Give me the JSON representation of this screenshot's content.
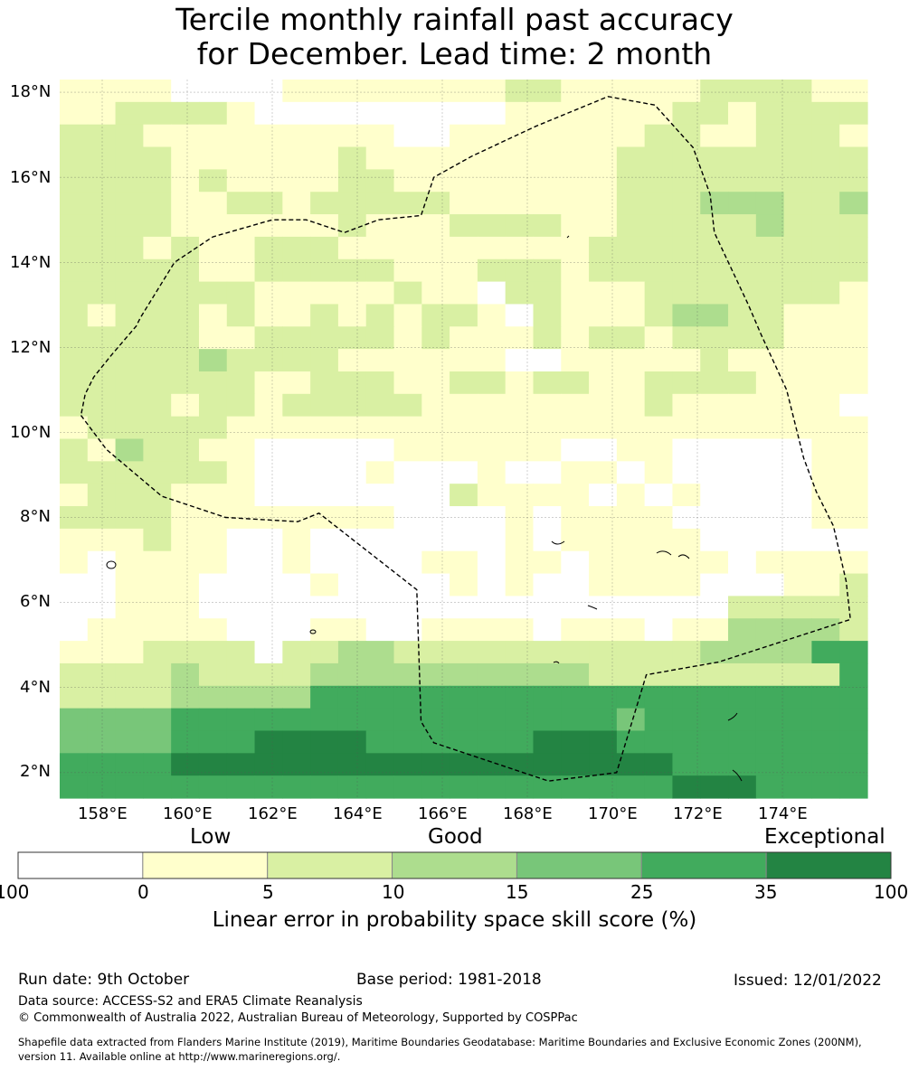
{
  "title_line1": "Tercile monthly rainfall past accuracy",
  "title_line2": "for December. Lead time: 2 month",
  "map": {
    "lon_range": [
      157,
      176
    ],
    "lat_range": [
      1.4,
      18.3
    ],
    "lon_ticks": [
      "158°E",
      "160°E",
      "162°E",
      "164°E",
      "166°E",
      "168°E",
      "170°E",
      "172°E",
      "174°E"
    ],
    "lat_ticks": [
      "18°N",
      "16°N",
      "14°N",
      "12°N",
      "10°N",
      "8°N",
      "6°N",
      "4°N",
      "2°N"
    ],
    "grid_note": "skill class index per 0.55° cell, rows north to south: 0=<0, 1=0-5, 2=5-10, 3=10-15, 4=15-25, 5=25-35, 6=35-100",
    "skill_grid": [
      "11110000111111112211111222211",
      "11222210000000001111112212222",
      "22211111111100111111122112221",
      "22221111112111111111222222222",
      "22221211112211111111222222222",
      "22221122122222111111222333223",
      "22221111112111222211222223222",
      "22212112221111111112222222222",
      "22222112222211122212222222222",
      "22222221111121102211122222221",
      "21222121121212210211123322111",
      "22222112222212111212212222111",
      "22222322221111110011111211111",
      "22222221122211221221122221111",
      "22221221222221111111121111110",
      "12222211111111111111111111111",
      "21322110000011111100110000011",
      "22222210000100010011010000011",
      "12221110000000211110101000011",
      "22221111111100001011110000011",
      "11121100100000001011111000000",
      "10111100100001101101111101111",
      "00111000010000101001111000112",
      "00111000000000000000000022222",
      "01111100011001111011101133332",
      "11122220223322222222222333355",
      "22223222233333333332222222225",
      "22223333355555555555555555555",
      "44445555555555555555455555555",
      "44445556666555555666555555555",
      "55556666666666666666665555555",
      "55555555555555555555556665555"
    ],
    "eez_boundary_lonlat": [
      [
        157.5,
        10.4
      ],
      [
        158.1,
        9.6
      ],
      [
        159.4,
        8.5
      ],
      [
        160.9,
        8.0
      ],
      [
        162.6,
        7.9
      ],
      [
        163.1,
        8.1
      ],
      [
        165.4,
        6.3
      ],
      [
        165.5,
        3.2
      ],
      [
        165.8,
        2.7
      ],
      [
        168.5,
        1.8
      ],
      [
        170.1,
        2.0
      ],
      [
        170.8,
        4.3
      ],
      [
        172.5,
        4.6
      ],
      [
        175.6,
        5.6
      ],
      [
        175.5,
        6.5
      ],
      [
        175.2,
        7.8
      ],
      [
        174.8,
        8.6
      ],
      [
        174.5,
        9.4
      ],
      [
        174.1,
        11.0
      ],
      [
        173.5,
        12.3
      ],
      [
        173.2,
        13.0
      ],
      [
        172.4,
        14.7
      ],
      [
        172.3,
        15.6
      ],
      [
        171.9,
        16.7
      ],
      [
        171.0,
        17.7
      ],
      [
        169.9,
        17.9
      ],
      [
        168.2,
        17.2
      ],
      [
        166.7,
        16.5
      ],
      [
        165.8,
        16.0
      ],
      [
        165.5,
        15.1
      ],
      [
        164.5,
        15.0
      ],
      [
        163.7,
        14.7
      ],
      [
        162.8,
        15.0
      ],
      [
        162.0,
        15.0
      ],
      [
        160.6,
        14.6
      ],
      [
        159.7,
        14.0
      ],
      [
        158.9,
        12.7
      ],
      [
        158.8,
        12.5
      ],
      [
        158.2,
        11.8
      ],
      [
        157.8,
        11.3
      ],
      [
        157.6,
        10.9
      ],
      [
        157.5,
        10.4
      ]
    ]
  },
  "legend": {
    "category_labels": [
      "Low",
      "Good",
      "Exceptional"
    ],
    "colors": [
      "#ffffff",
      "#ffffcc",
      "#d9f0a3",
      "#addd8e",
      "#78c679",
      "#41ab5d",
      "#238443"
    ],
    "boundaries": [
      "-100",
      "0",
      "5",
      "10",
      "15",
      "25",
      "35",
      "100"
    ],
    "axis_title": "Linear error in probability space skill score (%)"
  },
  "footer": {
    "run_date": "Run date: 9th October",
    "base_period": "Base period: 1981-2018",
    "issued": "Issued: 12/01/2022",
    "data_source": "Data source: ACCESS-S2 and ERA5 Climate Reanalysis",
    "copyright": "© Commonwealth of Australia 2022, Australian Bureau of Meteorology, Supported by COSPPac",
    "shapefile_line1": "Shapefile data extracted from Flanders Marine Institute (2019), Maritime Boundaries Geodatabase: Maritime Boundaries and Exclusive Economic Zones (200NM),",
    "shapefile_line2": "version 11. Available online at http://www.marineregions.org/."
  }
}
